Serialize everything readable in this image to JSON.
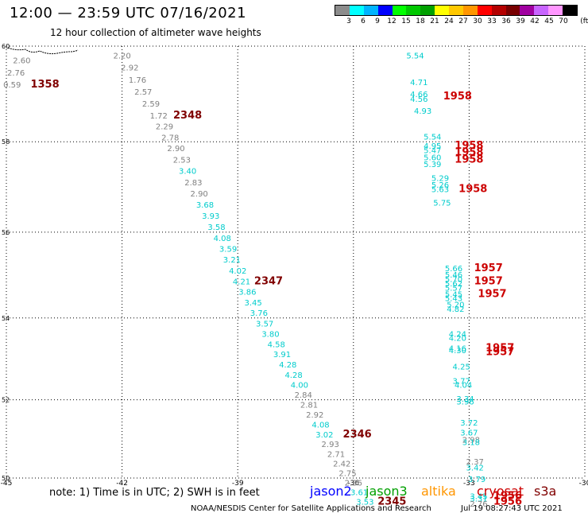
{
  "header": {
    "title": "12:00 — 23:59 UTC 07/16/2021",
    "subtitle": "12 hour collection of altimeter wave heights"
  },
  "colorbar": {
    "colors": [
      "#8c8c8c",
      "#00ffff",
      "#00b4ff",
      "#0000ff",
      "#00ff00",
      "#00c800",
      "#00a000",
      "#ffff00",
      "#ffc800",
      "#ff9600",
      "#ff0000",
      "#b40000",
      "#780000",
      "#a000a0",
      "#c864ff",
      "#ff96ff",
      "#000000"
    ],
    "labels": [
      "3",
      "6",
      "9",
      "12",
      "15",
      "18",
      "21",
      "24",
      "27",
      "30",
      "33",
      "36",
      "39",
      "42",
      "45",
      "70",
      "(ft)"
    ]
  },
  "axes": {
    "x_ticks": [
      "-45",
      "-42",
      "-39",
      "-36",
      "-33",
      "-30"
    ],
    "y_ticks": [
      "60",
      "58",
      "56",
      "54",
      "52",
      "50"
    ],
    "x_values": [
      -45,
      -42,
      -39,
      -36,
      -33,
      -30
    ],
    "y_values": [
      60,
      58,
      56,
      54,
      52,
      50
    ]
  },
  "labels": [
    {
      "t": "2.60",
      "x": -44.6,
      "y": 59.65,
      "c": "#808080"
    },
    {
      "t": "2.76",
      "x": -44.75,
      "y": 59.4,
      "c": "#808080"
    },
    {
      "t": "0.59",
      "x": -44.85,
      "y": 59.15,
      "c": "#808080"
    },
    {
      "t": "1358",
      "x": -44.0,
      "y": 59.15,
      "c": "#800000",
      "big": true
    },
    {
      "t": "2.20",
      "x": -42.0,
      "y": 59.75,
      "c": "#808080"
    },
    {
      "t": "2.92",
      "x": -41.8,
      "y": 59.5,
      "c": "#808080"
    },
    {
      "t": "1.76",
      "x": -41.6,
      "y": 59.25,
      "c": "#808080"
    },
    {
      "t": "2.57",
      "x": -41.45,
      "y": 59.0,
      "c": "#808080"
    },
    {
      "t": "2.59",
      "x": -41.25,
      "y": 58.75,
      "c": "#808080"
    },
    {
      "t": "1.72",
      "x": -41.05,
      "y": 58.5,
      "c": "#808080"
    },
    {
      "t": "2348",
      "x": -40.3,
      "y": 58.5,
      "c": "#800000",
      "big": true
    },
    {
      "t": "2.29",
      "x": -40.9,
      "y": 58.27,
      "c": "#808080"
    },
    {
      "t": "2.78",
      "x": -40.75,
      "y": 58.03,
      "c": "#808080"
    },
    {
      "t": "2.90",
      "x": -40.6,
      "y": 57.8,
      "c": "#808080"
    },
    {
      "t": "2.53",
      "x": -40.45,
      "y": 57.55,
      "c": "#808080"
    },
    {
      "t": "3.40",
      "x": -40.3,
      "y": 57.3,
      "c": "#00cccc"
    },
    {
      "t": "2.83",
      "x": -40.15,
      "y": 57.05,
      "c": "#808080"
    },
    {
      "t": "2.90",
      "x": -40.0,
      "y": 56.8,
      "c": "#808080"
    },
    {
      "t": "3.68",
      "x": -39.85,
      "y": 56.55,
      "c": "#00cccc"
    },
    {
      "t": "3.93",
      "x": -39.7,
      "y": 56.3,
      "c": "#00cccc"
    },
    {
      "t": "3.58",
      "x": -39.55,
      "y": 56.05,
      "c": "#00cccc"
    },
    {
      "t": "4.08",
      "x": -39.4,
      "y": 55.8,
      "c": "#00cccc"
    },
    {
      "t": "3.59",
      "x": -39.25,
      "y": 55.55,
      "c": "#00cccc"
    },
    {
      "t": "3.21",
      "x": -39.15,
      "y": 55.3,
      "c": "#00cccc"
    },
    {
      "t": "4.02",
      "x": -39.0,
      "y": 55.05,
      "c": "#00cccc"
    },
    {
      "t": "4.21",
      "x": -38.9,
      "y": 54.8,
      "c": "#00cccc"
    },
    {
      "t": "2347",
      "x": -38.2,
      "y": 54.8,
      "c": "#800000",
      "big": true
    },
    {
      "t": "3.86",
      "x": -38.75,
      "y": 54.55,
      "c": "#00cccc"
    },
    {
      "t": "3.45",
      "x": -38.6,
      "y": 54.3,
      "c": "#00cccc"
    },
    {
      "t": "3.76",
      "x": -38.45,
      "y": 54.05,
      "c": "#00cccc"
    },
    {
      "t": "3.57",
      "x": -38.3,
      "y": 53.8,
      "c": "#00cccc"
    },
    {
      "t": "3.80",
      "x": -38.15,
      "y": 53.55,
      "c": "#00cccc"
    },
    {
      "t": "4.58",
      "x": -38.0,
      "y": 53.3,
      "c": "#00cccc"
    },
    {
      "t": "3.91",
      "x": -37.85,
      "y": 53.05,
      "c": "#00cccc"
    },
    {
      "t": "4.28",
      "x": -37.7,
      "y": 52.8,
      "c": "#00cccc"
    },
    {
      "t": "4.28",
      "x": -37.55,
      "y": 52.55,
      "c": "#00cccc"
    },
    {
      "t": "4.00",
      "x": -37.4,
      "y": 52.3,
      "c": "#00cccc"
    },
    {
      "t": "2.84",
      "x": -37.3,
      "y": 52.05,
      "c": "#808080"
    },
    {
      "t": "2.81",
      "x": -37.15,
      "y": 51.8,
      "c": "#808080"
    },
    {
      "t": "2.92",
      "x": -37.0,
      "y": 51.55,
      "c": "#808080"
    },
    {
      "t": "4.08",
      "x": -36.85,
      "y": 51.3,
      "c": "#00cccc"
    },
    {
      "t": "3.02",
      "x": -36.75,
      "y": 51.05,
      "c": "#00cccc"
    },
    {
      "t": "2346",
      "x": -35.9,
      "y": 51.05,
      "c": "#800000",
      "big": true
    },
    {
      "t": "2.93",
      "x": -36.6,
      "y": 50.8,
      "c": "#808080"
    },
    {
      "t": "2.71",
      "x": -36.45,
      "y": 50.55,
      "c": "#808080"
    },
    {
      "t": "2.42",
      "x": -36.3,
      "y": 50.3,
      "c": "#808080"
    },
    {
      "t": "2.75",
      "x": -36.15,
      "y": 50.05,
      "c": "#808080"
    },
    {
      "t": "2.36",
      "x": -36.0,
      "y": 49.8,
      "c": "#808080"
    },
    {
      "t": "3.61",
      "x": -35.85,
      "y": 49.55,
      "c": "#00cccc"
    },
    {
      "t": "3.53",
      "x": -35.7,
      "y": 49.3,
      "c": "#00cccc"
    },
    {
      "t": "2345",
      "x": -35.0,
      "y": 49.3,
      "c": "#800000",
      "big": true
    },
    {
      "t": "5.54",
      "x": -34.4,
      "y": 59.75,
      "c": "#00cccc"
    },
    {
      "t": "4.71",
      "x": -34.3,
      "y": 59.2,
      "c": "#00cccc"
    },
    {
      "t": "4.66",
      "x": -34.3,
      "y": 58.95,
      "c": "#00cccc"
    },
    {
      "t": "4.56",
      "x": -34.3,
      "y": 58.85,
      "c": "#00cccc"
    },
    {
      "t": "1958",
      "x": -33.3,
      "y": 58.9,
      "c": "#cc0000",
      "big": true
    },
    {
      "t": "4.93",
      "x": -34.2,
      "y": 58.6,
      "c": "#00cccc"
    },
    {
      "t": "5.54",
      "x": -33.95,
      "y": 58.05,
      "c": "#00cccc"
    },
    {
      "t": "4.95",
      "x": -33.95,
      "y": 57.85,
      "c": "#00cccc"
    },
    {
      "t": "5.47",
      "x": -33.95,
      "y": 57.75,
      "c": "#00cccc"
    },
    {
      "t": "5.60",
      "x": -33.95,
      "y": 57.6,
      "c": "#00cccc"
    },
    {
      "t": "5.39",
      "x": -33.95,
      "y": 57.45,
      "c": "#00cccc"
    },
    {
      "t": "1958",
      "x": -33.0,
      "y": 57.85,
      "c": "#cc0000",
      "big": true
    },
    {
      "t": "1958",
      "x": -33.0,
      "y": 57.7,
      "c": "#cc0000",
      "big": true
    },
    {
      "t": "1958",
      "x": -33.0,
      "y": 57.55,
      "c": "#cc0000",
      "big": true
    },
    {
      "t": "5.29",
      "x": -33.75,
      "y": 57.15,
      "c": "#00cccc"
    },
    {
      "t": "5.26",
      "x": -33.75,
      "y": 57.0,
      "c": "#00cccc"
    },
    {
      "t": "5.63",
      "x": -33.75,
      "y": 56.9,
      "c": "#00cccc"
    },
    {
      "t": "1958",
      "x": -32.9,
      "y": 56.9,
      "c": "#cc0000",
      "big": true
    },
    {
      "t": "5.75",
      "x": -33.7,
      "y": 56.6,
      "c": "#00cccc"
    },
    {
      "t": "5.66",
      "x": -33.4,
      "y": 55.1,
      "c": "#00cccc"
    },
    {
      "t": "5.46",
      "x": -33.4,
      "y": 54.95,
      "c": "#00cccc"
    },
    {
      "t": "5.70",
      "x": -33.4,
      "y": 54.85,
      "c": "#00cccc"
    },
    {
      "t": "5.62",
      "x": -33.4,
      "y": 54.75,
      "c": "#00cccc"
    },
    {
      "t": "5.57",
      "x": -33.4,
      "y": 54.65,
      "c": "#00cccc"
    },
    {
      "t": "5.45",
      "x": -33.4,
      "y": 54.5,
      "c": "#00cccc"
    },
    {
      "t": "5.43",
      "x": -33.4,
      "y": 54.4,
      "c": "#00cccc"
    },
    {
      "t": "5.20",
      "x": -33.35,
      "y": 54.25,
      "c": "#00cccc"
    },
    {
      "t": "4.82",
      "x": -33.35,
      "y": 54.15,
      "c": "#00cccc"
    },
    {
      "t": "1957",
      "x": -32.5,
      "y": 55.1,
      "c": "#cc0000",
      "big": true
    },
    {
      "t": "1957",
      "x": -32.5,
      "y": 54.8,
      "c": "#cc0000",
      "big": true
    },
    {
      "t": "1957",
      "x": -32.4,
      "y": 54.5,
      "c": "#cc0000",
      "big": true
    },
    {
      "t": "4.24",
      "x": -33.3,
      "y": 53.55,
      "c": "#00cccc"
    },
    {
      "t": "4.20",
      "x": -33.3,
      "y": 53.45,
      "c": "#00cccc"
    },
    {
      "t": "4.16",
      "x": -33.3,
      "y": 53.2,
      "c": "#00cccc"
    },
    {
      "t": "4.30",
      "x": -33.3,
      "y": 53.15,
      "c": "#00cccc"
    },
    {
      "t": "1957",
      "x": -32.2,
      "y": 53.2,
      "c": "#cc0000",
      "big": true
    },
    {
      "t": "1957",
      "x": -32.2,
      "y": 53.1,
      "c": "#cc0000",
      "big": true
    },
    {
      "t": "4.25",
      "x": -33.2,
      "y": 52.75,
      "c": "#00cccc"
    },
    {
      "t": "3.77",
      "x": -33.2,
      "y": 52.4,
      "c": "#00cccc"
    },
    {
      "t": "4.04",
      "x": -33.15,
      "y": 52.3,
      "c": "#00cccc"
    },
    {
      "t": "3.34",
      "x": -33.1,
      "y": 51.95,
      "c": "#00cccc"
    },
    {
      "t": "3.96",
      "x": -33.1,
      "y": 51.88,
      "c": "#00cccc"
    },
    {
      "t": "3.72",
      "x": -33.0,
      "y": 51.35,
      "c": "#00cccc"
    },
    {
      "t": "3.67",
      "x": -33.0,
      "y": 51.1,
      "c": "#00cccc"
    },
    {
      "t": "2.98",
      "x": -32.95,
      "y": 50.92,
      "c": "#808080"
    },
    {
      "t": "3.18",
      "x": -32.95,
      "y": 50.85,
      "c": "#00cccc"
    },
    {
      "t": "2.37",
      "x": -32.85,
      "y": 50.35,
      "c": "#808080"
    },
    {
      "t": "3.42",
      "x": -32.85,
      "y": 50.2,
      "c": "#00cccc"
    },
    {
      "t": "3.79",
      "x": -32.8,
      "y": 49.9,
      "c": "#00cccc"
    },
    {
      "t": "3.45",
      "x": -32.75,
      "y": 49.45,
      "c": "#00cccc"
    },
    {
      "t": "3.31",
      "x": -32.75,
      "y": 49.38,
      "c": "#00cccc"
    },
    {
      "t": "2.76",
      "x": -32.75,
      "y": 49.25,
      "c": "#808080"
    },
    {
      "t": "1956",
      "x": -32.0,
      "y": 49.45,
      "c": "#cc0000",
      "big": true
    },
    {
      "t": "1956",
      "x": -32.0,
      "y": 49.3,
      "c": "#cc0000",
      "big": true
    }
  ],
  "note": "note:  1) Time is in UTC;  2) SWH is in feet",
  "legend": [
    {
      "name": "jason2",
      "color": "#0000ff"
    },
    {
      "name": "jason3",
      "color": "#00a000"
    },
    {
      "name": "altika",
      "color": "#ff9600"
    },
    {
      "name": "cryosat",
      "color": "#cc0000"
    },
    {
      "name": "s3a",
      "color": "#800000"
    }
  ],
  "footer": {
    "credit": "NOAA/NESDIS Center for Satellite Applications and Research",
    "timestamp": "Jul 19 08:27:43 UTC 2021"
  }
}
